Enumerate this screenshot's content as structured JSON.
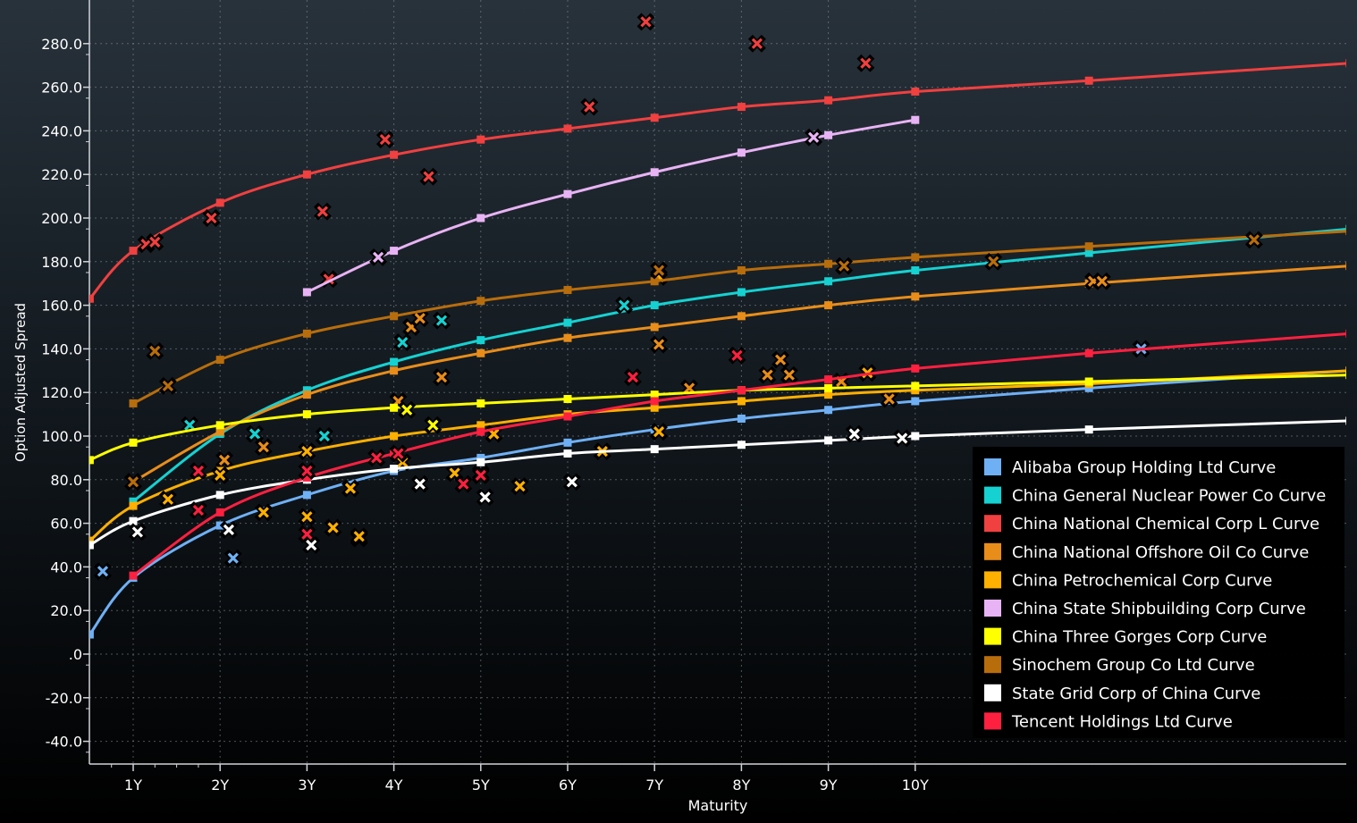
{
  "chart_data": {
    "type": "line",
    "title": "",
    "xlabel": "Maturity",
    "ylabel": "Option Adjusted Spread",
    "xlim": [
      0.5,
      14.95
    ],
    "ylim": [
      -50,
      290
    ],
    "x_ticks": [
      {
        "x": 1,
        "label": "1Y"
      },
      {
        "x": 2,
        "label": "2Y"
      },
      {
        "x": 3,
        "label": "3Y"
      },
      {
        "x": 4,
        "label": "4Y"
      },
      {
        "x": 5,
        "label": "5Y"
      },
      {
        "x": 6,
        "label": "6Y"
      },
      {
        "x": 7,
        "label": "7Y"
      },
      {
        "x": 8,
        "label": "8Y"
      },
      {
        "x": 9,
        "label": "9Y"
      },
      {
        "x": 10,
        "label": "10Y"
      }
    ],
    "y_ticks": [
      {
        "y": 280,
        "label": "280.0"
      },
      {
        "y": 260,
        "label": "260.0"
      },
      {
        "y": 240,
        "label": "240.0"
      },
      {
        "y": 220,
        "label": "220.0"
      },
      {
        "y": 200,
        "label": "200.0"
      },
      {
        "y": 180,
        "label": "180.0"
      },
      {
        "y": 160,
        "label": "160.0"
      },
      {
        "y": 140,
        "label": "140.0"
      },
      {
        "y": 120,
        "label": "120.0"
      },
      {
        "y": 100,
        "label": "100.0"
      },
      {
        "y": 80,
        "label": "80.0"
      },
      {
        "y": 60,
        "label": "60.0"
      },
      {
        "y": 40,
        "label": "40.0"
      },
      {
        "y": 20,
        "label": "20.0"
      },
      {
        "y": 0,
        "label": ".0"
      },
      {
        "y": -20,
        "label": "-20.0"
      },
      {
        "y": -40,
        "label": "-40.0"
      }
    ],
    "grid": true,
    "legend_position": "bottom-right",
    "series": [
      {
        "name": "Alibaba Group Holding Ltd Curve",
        "color": "#6fb0f5",
        "curve": [
          [
            0.5,
            9
          ],
          [
            1,
            35
          ],
          [
            2,
            59
          ],
          [
            3,
            73
          ],
          [
            4,
            84
          ],
          [
            5,
            90
          ],
          [
            6,
            97
          ],
          [
            7,
            103
          ],
          [
            8,
            108
          ],
          [
            9,
            112
          ],
          [
            10,
            116
          ],
          [
            12,
            122
          ],
          [
            15,
            130
          ]
        ],
        "bonds": [
          [
            0.65,
            38
          ],
          [
            2.15,
            44
          ],
          [
            2.1,
            57
          ],
          [
            3.6,
            53
          ],
          [
            12.6,
            140
          ]
        ]
      },
      {
        "name": "China General Nuclear Power Co Curve",
        "color": "#16d1d1",
        "curve": [
          [
            1,
            70
          ],
          [
            2,
            101
          ],
          [
            3,
            121
          ],
          [
            4,
            134
          ],
          [
            5,
            144
          ],
          [
            6,
            152
          ],
          [
            7,
            160
          ],
          [
            8,
            166
          ],
          [
            9,
            171
          ],
          [
            10,
            176
          ],
          [
            12,
            184
          ],
          [
            15,
            195
          ]
        ],
        "bonds": [
          [
            1.65,
            105
          ],
          [
            2.4,
            101
          ],
          [
            3.2,
            100
          ],
          [
            4.1,
            143
          ],
          [
            4.55,
            153
          ],
          [
            6.65,
            160
          ]
        ]
      },
      {
        "name": "China National Chemical Corp L Curve",
        "color": "#f04040",
        "curve": [
          [
            0.5,
            163
          ],
          [
            1,
            185
          ],
          [
            2,
            207
          ],
          [
            3,
            220
          ],
          [
            4,
            229
          ],
          [
            5,
            236
          ],
          [
            6,
            241
          ],
          [
            7,
            246
          ],
          [
            8,
            251
          ],
          [
            9,
            254
          ],
          [
            10,
            258
          ],
          [
            12,
            263
          ],
          [
            15,
            271
          ]
        ],
        "bonds": [
          [
            1.15,
            188
          ],
          [
            1.25,
            189
          ],
          [
            1.9,
            200
          ],
          [
            3.18,
            203
          ],
          [
            3.25,
            172
          ],
          [
            3.9,
            236
          ],
          [
            4.4,
            219
          ],
          [
            6.25,
            251
          ],
          [
            6.9,
            290
          ],
          [
            8.18,
            280
          ],
          [
            9.43,
            271
          ]
        ]
      },
      {
        "name": "China National Offshore Oil Co Curve",
        "color": "#e88d1a",
        "curve": [
          [
            1,
            79
          ],
          [
            2,
            102
          ],
          [
            3,
            119
          ],
          [
            4,
            130
          ],
          [
            5,
            138
          ],
          [
            6,
            145
          ],
          [
            7,
            150
          ],
          [
            8,
            155
          ],
          [
            9,
            160
          ],
          [
            10,
            164
          ],
          [
            12,
            170
          ],
          [
            15,
            178
          ]
        ],
        "bonds": [
          [
            2.05,
            89
          ],
          [
            2.5,
            95
          ],
          [
            4.05,
            116
          ],
          [
            4.2,
            150
          ],
          [
            4.3,
            154
          ],
          [
            4.55,
            127
          ],
          [
            7.05,
            142
          ],
          [
            7.4,
            122
          ],
          [
            8.3,
            128
          ],
          [
            8.45,
            135
          ],
          [
            8.55,
            128
          ],
          [
            9.15,
            125
          ],
          [
            9.7,
            117
          ],
          [
            12.05,
            171
          ],
          [
            12.15,
            171
          ]
        ]
      },
      {
        "name": "China Petrochemical Corp Curve",
        "color": "#ffb000",
        "curve": [
          [
            0.5,
            52
          ],
          [
            1,
            68
          ],
          [
            2,
            84
          ],
          [
            3,
            93
          ],
          [
            4,
            100
          ],
          [
            5,
            105
          ],
          [
            6,
            110
          ],
          [
            7,
            113
          ],
          [
            8,
            116
          ],
          [
            9,
            119
          ],
          [
            10,
            121
          ],
          [
            12,
            124
          ],
          [
            15,
            130
          ]
        ],
        "bonds": [
          [
            1.4,
            71
          ],
          [
            2,
            82
          ],
          [
            2.5,
            65
          ],
          [
            3,
            63
          ],
          [
            3,
            93
          ],
          [
            3.3,
            58
          ],
          [
            3.5,
            76
          ],
          [
            3.6,
            54
          ],
          [
            4.1,
            88
          ],
          [
            4.45,
            105
          ],
          [
            4.7,
            83
          ],
          [
            5,
            83
          ],
          [
            5.15,
            101
          ],
          [
            5.45,
            77
          ],
          [
            6.4,
            93
          ],
          [
            7.05,
            102
          ],
          [
            7.05,
            173
          ],
          [
            9.45,
            129
          ]
        ]
      },
      {
        "name": "China State Shipbuilding Corp Curve",
        "color": "#e8b3f4",
        "curve": [
          [
            3,
            166
          ],
          [
            4,
            185
          ],
          [
            5,
            200
          ],
          [
            6,
            211
          ],
          [
            7,
            221
          ],
          [
            8,
            230
          ],
          [
            9,
            238
          ],
          [
            10,
            245
          ]
        ],
        "bonds": [
          [
            3.82,
            182
          ],
          [
            8.83,
            237
          ]
        ]
      },
      {
        "name": "China Three Gorges Corp Curve",
        "color": "#ffff00",
        "curve": [
          [
            0.5,
            89
          ],
          [
            1,
            97
          ],
          [
            2,
            105
          ],
          [
            3,
            110
          ],
          [
            4,
            113
          ],
          [
            5,
            115
          ],
          [
            6,
            117
          ],
          [
            7,
            119
          ],
          [
            8,
            121
          ],
          [
            9,
            122
          ],
          [
            10,
            123
          ],
          [
            12,
            125
          ],
          [
            15,
            128
          ]
        ],
        "bonds": [
          [
            4.15,
            112
          ],
          [
            4.45,
            105
          ]
        ]
      },
      {
        "name": "Sinochem Group Co Ltd Curve",
        "color": "#b86d0c",
        "curve": [
          [
            1,
            115
          ],
          [
            2,
            135
          ],
          [
            3,
            147
          ],
          [
            4,
            155
          ],
          [
            5,
            162
          ],
          [
            6,
            167
          ],
          [
            7,
            171
          ],
          [
            8,
            176
          ],
          [
            9,
            179
          ],
          [
            10,
            182
          ],
          [
            12,
            187
          ],
          [
            15,
            194
          ]
        ],
        "bonds": [
          [
            1,
            79
          ],
          [
            1.25,
            139
          ],
          [
            1.4,
            123
          ],
          [
            7.05,
            176
          ],
          [
            9.18,
            178
          ],
          [
            10.9,
            180
          ],
          [
            13.9,
            190
          ]
        ]
      },
      {
        "name": "State Grid Corp of China Curve",
        "color": "#ffffff",
        "curve": [
          [
            0.5,
            50
          ],
          [
            1,
            61
          ],
          [
            2,
            73
          ],
          [
            3,
            80
          ],
          [
            4,
            85
          ],
          [
            5,
            88
          ],
          [
            6,
            92
          ],
          [
            7,
            94
          ],
          [
            8,
            96
          ],
          [
            9,
            98
          ],
          [
            10,
            100
          ],
          [
            12,
            103
          ],
          [
            15,
            107
          ]
        ],
        "bonds": [
          [
            1.05,
            56
          ],
          [
            2.1,
            57
          ],
          [
            3.05,
            50
          ],
          [
            4.3,
            78
          ],
          [
            5.05,
            72
          ],
          [
            6.05,
            79
          ],
          [
            9.3,
            101
          ],
          [
            9.85,
            99
          ]
        ]
      },
      {
        "name": "Tencent Holdings Ltd Curve",
        "color": "#ff2040",
        "curve": [
          [
            1,
            36
          ],
          [
            2,
            65
          ],
          [
            3,
            81
          ],
          [
            4,
            92
          ],
          [
            5,
            102
          ],
          [
            6,
            109
          ],
          [
            7,
            116
          ],
          [
            8,
            121
          ],
          [
            9,
            126
          ],
          [
            10,
            131
          ],
          [
            12,
            138
          ],
          [
            15,
            147
          ]
        ],
        "bonds": [
          [
            1.75,
            84
          ],
          [
            1.75,
            66
          ],
          [
            3,
            84
          ],
          [
            3,
            55
          ],
          [
            3.8,
            90
          ],
          [
            4.05,
            92
          ],
          [
            4.8,
            78
          ],
          [
            5,
            82
          ],
          [
            6.75,
            127
          ],
          [
            7.95,
            137
          ]
        ]
      }
    ]
  }
}
